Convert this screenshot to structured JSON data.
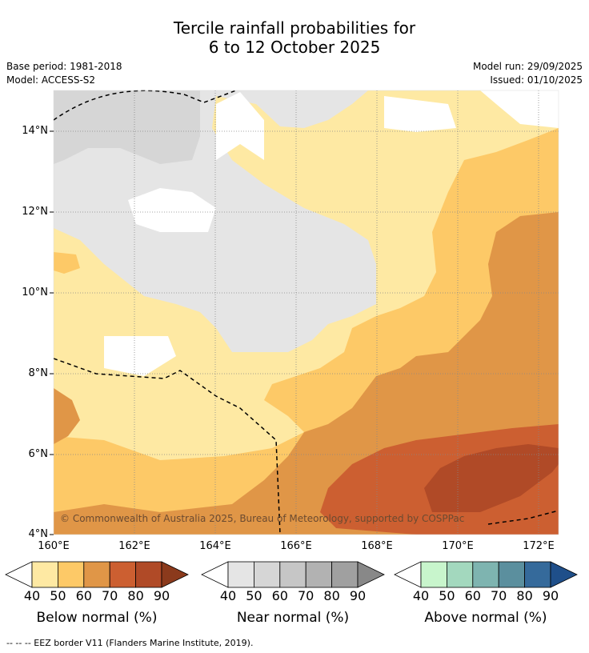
{
  "header": {
    "title_line1": "Tercile rainfall probabilities for",
    "title_line2": "6 to 12 October 2025",
    "base_period": "Base period: 1981-2018",
    "model": "Model: ACCESS-S2",
    "model_run": "Model run: 29/09/2025",
    "issued": "Issued: 01/10/2025"
  },
  "map": {
    "lat_labels": [
      "14°N",
      "12°N",
      "10°N",
      "8°N",
      "6°N",
      "4°N"
    ],
    "lon_labels": [
      "160°E",
      "162°E",
      "164°E",
      "166°E",
      "168°E",
      "170°E",
      "172°E"
    ],
    "copyright": "© Commonwealth of Australia 2025, Bureau of Meteorology, supported by COSPPac"
  },
  "colorbars": [
    {
      "label": "Below normal (%)",
      "ticks": [
        "40",
        "50",
        "60",
        "70",
        "80",
        "90"
      ],
      "colors": [
        "#ffffff",
        "#fee9a3",
        "#fdc967",
        "#e09647",
        "#cc5f31",
        "#b04a27",
        "#8b3a1c"
      ]
    },
    {
      "label": "Near normal (%)",
      "ticks": [
        "40",
        "50",
        "60",
        "70",
        "80",
        "90"
      ],
      "colors": [
        "#ffffff",
        "#e5e5e5",
        "#d6d6d6",
        "#c6c6c6",
        "#b2b2b2",
        "#a0a0a0",
        "#888888"
      ]
    },
    {
      "label": "Above normal (%)",
      "ticks": [
        "40",
        "50",
        "60",
        "70",
        "80",
        "90"
      ],
      "colors": [
        "#ffffff",
        "#c8f5cc",
        "#a3d8be",
        "#7eb4b0",
        "#5b8f9e",
        "#356a9b",
        "#1f4f8a"
      ]
    }
  ],
  "footer": {
    "eez_note": "--  --  -- EEZ border V11 (Flanders Marine Institute, 2019)."
  },
  "palette": {
    "below_50": "#fee9a3",
    "below_60": "#fdc967",
    "below_70": "#e09647",
    "below_80": "#cc5f31",
    "below_90": "#b04a27",
    "near_50": "#e5e5e5",
    "near_60": "#d6d6d6"
  }
}
